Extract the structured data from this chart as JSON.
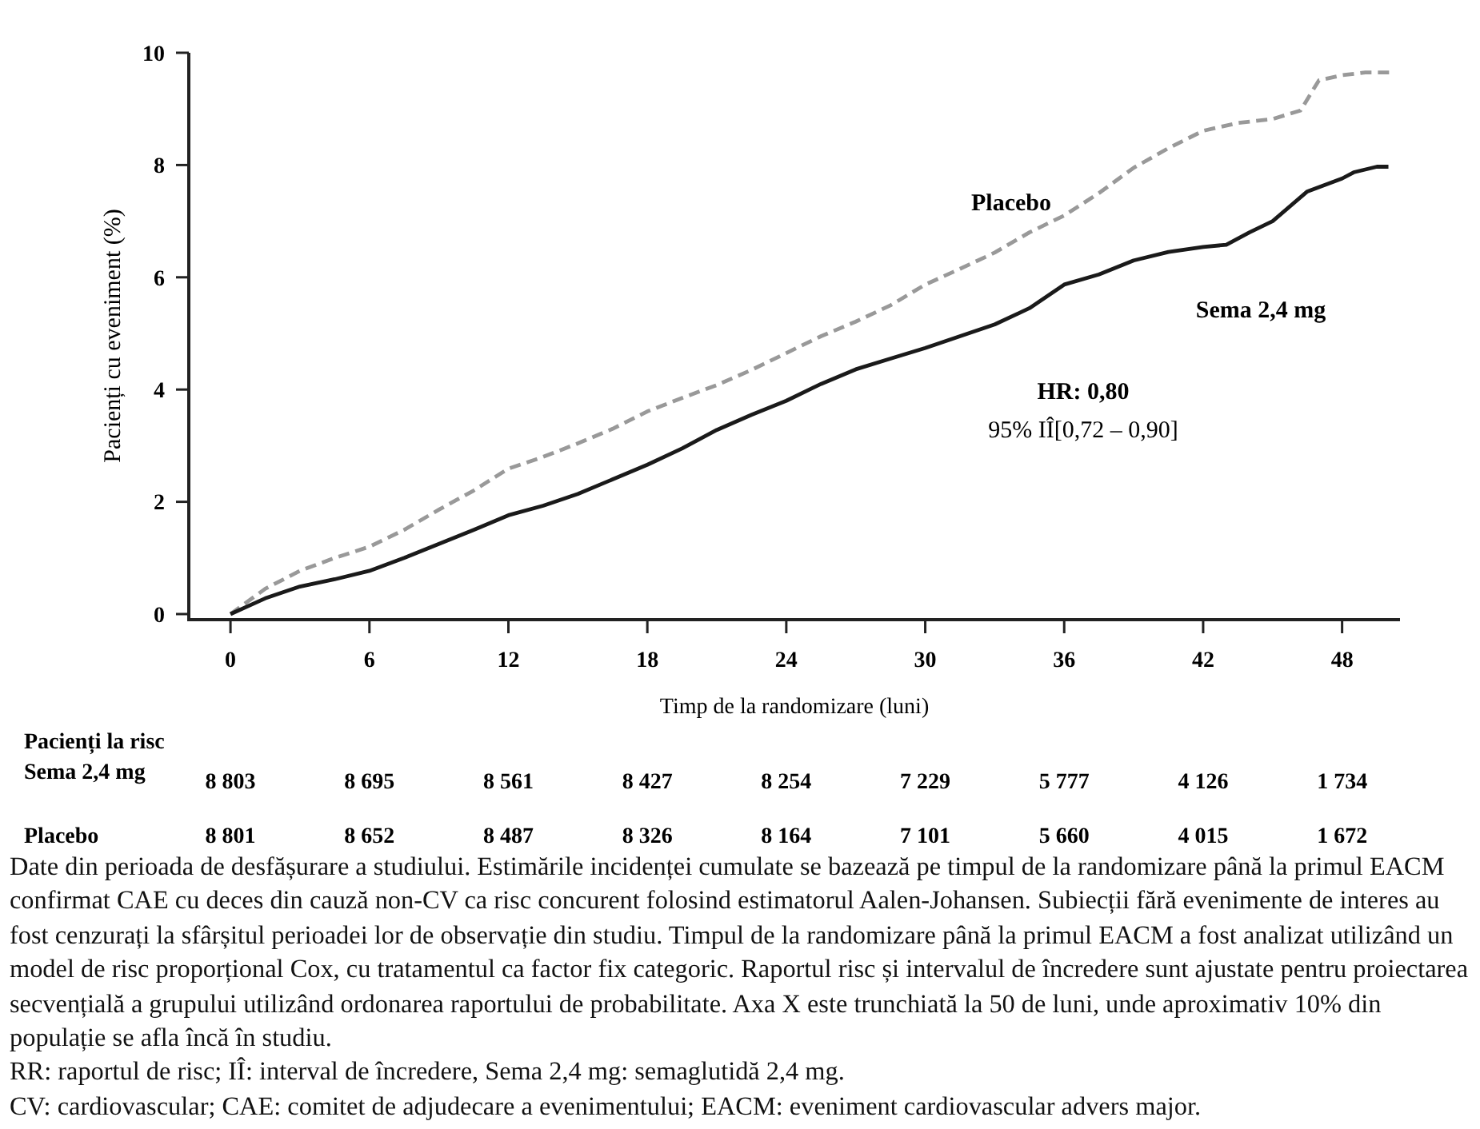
{
  "chart_data": {
    "type": "line",
    "ylabel": "Pacienți cu eveniment (%)",
    "xlabel": "Timp de la randomizare (luni)",
    "xlim": [
      -1.8,
      50.5
    ],
    "xticks": [
      0,
      6,
      12,
      18,
      24,
      30,
      36,
      42,
      48
    ],
    "ylim": [
      -0.1,
      10
    ],
    "yticks": [
      0,
      2,
      4,
      6,
      8,
      10
    ],
    "grid": false,
    "series": [
      {
        "name": "Placebo",
        "color": "#999999",
        "line_style": "dashed",
        "x": [
          0,
          1.5,
          3,
          4.5,
          6,
          7.5,
          9,
          10.5,
          12,
          13.5,
          15,
          16.5,
          18,
          19.5,
          21,
          22.5,
          24,
          25.5,
          27,
          28.5,
          30,
          31.5,
          33,
          34.5,
          36,
          37.5,
          39,
          40.5,
          42,
          43.5,
          45,
          46.2,
          47,
          48,
          49,
          50.1
        ],
        "values": [
          0,
          0.45,
          0.77,
          1.0,
          1.2,
          1.5,
          1.86,
          2.2,
          2.59,
          2.8,
          3.04,
          3.3,
          3.61,
          3.85,
          4.08,
          4.35,
          4.65,
          4.95,
          5.21,
          5.5,
          5.87,
          6.15,
          6.44,
          6.8,
          7.1,
          7.5,
          7.95,
          8.3,
          8.61,
          8.75,
          8.82,
          8.97,
          9.51,
          9.6,
          9.65,
          9.65
        ]
      },
      {
        "name": "Sema 2,4 mg",
        "color": "#1a1a1a",
        "line_style": "solid",
        "x": [
          0,
          1.5,
          3,
          4.5,
          6,
          7.5,
          9,
          10.5,
          12,
          13.5,
          15,
          16.5,
          18,
          19.5,
          21,
          22.5,
          24,
          25.5,
          27,
          28.5,
          30,
          31.5,
          33,
          34.5,
          36,
          37.5,
          39,
          40.5,
          42,
          43,
          44,
          45,
          46.5,
          48,
          48.5,
          49.5,
          50
        ],
        "values": [
          0,
          0.28,
          0.49,
          0.62,
          0.77,
          1.0,
          1.25,
          1.5,
          1.76,
          1.93,
          2.14,
          2.4,
          2.66,
          2.95,
          3.28,
          3.55,
          3.8,
          4.1,
          4.36,
          4.55,
          4.74,
          4.95,
          5.16,
          5.45,
          5.87,
          6.05,
          6.3,
          6.45,
          6.54,
          6.58,
          6.8,
          7.0,
          7.53,
          7.76,
          7.87,
          7.97,
          7.97
        ]
      }
    ],
    "annotations": [
      "HR: 0,80",
      "95% IÎ[0,72 – 0,90]",
      "Pacienți la risc",
      "Sema 2,4 mg",
      "Placebo",
      "8 803",
      "8 695",
      "8 561",
      "8 427",
      "8 254",
      "7 229",
      "5 777",
      "4 126",
      "1 734",
      "8 801",
      "8 652",
      "8 487",
      "8 326",
      "8 164",
      "7 101",
      "5 660",
      "4 015",
      "1 672",
      "Date din perioada de desfășurare a studiului. Estimările incidenței cumulate se bazează pe timpul de la randomizare până la primul EACM confirmat CAE cu deces din cauză non-CV ca risc concurent folosind estimatorul Aalen-Johansen. Subiecții fără evenimente de interes au fost cenzurați la sfârșitul perioadei lor de observație din studiu. Timpul de la randomizare până la primul EACM a fost analizat utilizând un model de risc proporțional Cox, cu tratamentul ca factor fix categoric. Raportul risc și intervalul de încredere sunt ajustate pentru proiectarea secvențială a grupului utilizând ordonarea raportului de probabilitate. Axa X este trunchiată la 50 de luni, unde aproximativ 10% din populație se afla încă în studiu.",
      "RR: raportul de risc; IÎ: interval de încredere, Sema 2,4 mg: semaglutidă 2,4 mg.",
      "CV: cardiovascular; CAE: comitet de adjudecare a evenimentului; EACM: eveniment cardiovascular advers major."
    ]
  }
}
